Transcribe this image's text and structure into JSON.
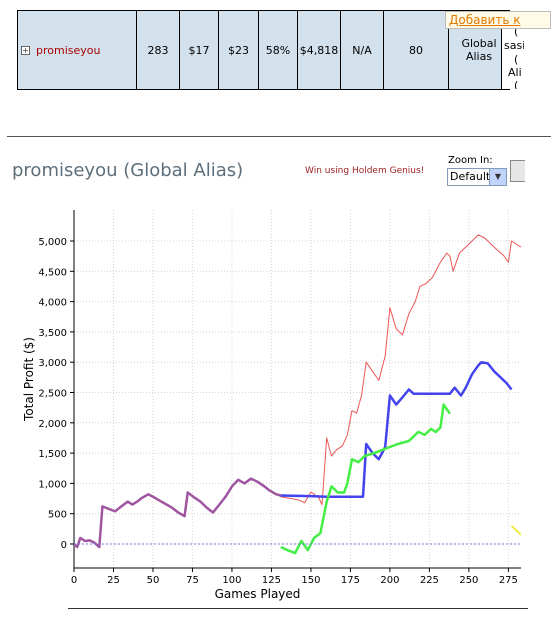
{
  "add_link": "Добавить к",
  "stats": {
    "expand_icon": "plus-box-icon",
    "player": "promiseyou",
    "games": "283",
    "avg_stake": "$17",
    "avg_profit": "$23",
    "roi": "58%",
    "total_profit": "$4,818",
    "na": "N/A",
    "col8": "80",
    "alias_label": "Global Alias"
  },
  "clip_text": [
    "(",
    "sasi",
    "(",
    "Ali",
    "("
  ],
  "chart_title": "promiseyou (Global Alias)",
  "promo": "Win using Holdem Genius!",
  "zoom": {
    "label": "Zoom In:",
    "value": "Default"
  },
  "chart_data": {
    "type": "line",
    "xlabel": "Games Played",
    "ylabel": "Total Profit ($)",
    "x_ticks": [
      0,
      25,
      50,
      75,
      100,
      125,
      150,
      175,
      200,
      225,
      250,
      275
    ],
    "y_ticks": [
      0,
      500,
      1000,
      1500,
      2000,
      2500,
      3000,
      3500,
      4000,
      4500,
      5000
    ],
    "y_tick_labels": [
      "0",
      "500",
      "1,000",
      "1,500",
      "2,000",
      "2,500",
      "3,000",
      "3,500",
      "4,000",
      "4,500",
      "5,000"
    ],
    "xlim": [
      0,
      283
    ],
    "ylim": [
      -400,
      5300
    ],
    "grid": true,
    "series": [
      {
        "color": "#ee5555",
        "width": 1,
        "points": [
          [
            0,
            0
          ],
          [
            2,
            -50
          ],
          [
            4,
            100
          ],
          [
            7,
            50
          ],
          [
            10,
            60
          ],
          [
            13,
            20
          ],
          [
            16,
            -50
          ],
          [
            18,
            620
          ],
          [
            22,
            580
          ],
          [
            26,
            540
          ],
          [
            30,
            620
          ],
          [
            34,
            700
          ],
          [
            37,
            650
          ],
          [
            40,
            700
          ],
          [
            43,
            760
          ],
          [
            47,
            820
          ],
          [
            50,
            780
          ],
          [
            54,
            720
          ],
          [
            58,
            660
          ],
          [
            62,
            600
          ],
          [
            66,
            520
          ],
          [
            70,
            460
          ],
          [
            72,
            850
          ],
          [
            76,
            770
          ],
          [
            80,
            700
          ],
          [
            84,
            600
          ],
          [
            88,
            520
          ],
          [
            92,
            650
          ],
          [
            96,
            780
          ],
          [
            100,
            950
          ],
          [
            104,
            1060
          ],
          [
            108,
            1000
          ],
          [
            112,
            1080
          ],
          [
            116,
            1030
          ],
          [
            120,
            960
          ],
          [
            124,
            880
          ],
          [
            128,
            820
          ],
          [
            131,
            780
          ],
          [
            135,
            760
          ],
          [
            140,
            740
          ],
          [
            143,
            720
          ],
          [
            146,
            680
          ],
          [
            150,
            860
          ],
          [
            152,
            820
          ],
          [
            155,
            760
          ],
          [
            157,
            650
          ],
          [
            160,
            1750
          ],
          [
            163,
            1450
          ],
          [
            166,
            1550
          ],
          [
            170,
            1620
          ],
          [
            173,
            1800
          ],
          [
            176,
            2200
          ],
          [
            179,
            2160
          ],
          [
            182,
            2450
          ],
          [
            185,
            3000
          ],
          [
            189,
            2850
          ],
          [
            193,
            2700
          ],
          [
            197,
            3100
          ],
          [
            200,
            3900
          ],
          [
            204,
            3550
          ],
          [
            208,
            3450
          ],
          [
            212,
            3800
          ],
          [
            216,
            4000
          ],
          [
            219,
            4250
          ],
          [
            223,
            4300
          ],
          [
            227,
            4400
          ],
          [
            232,
            4650
          ],
          [
            236,
            4800
          ],
          [
            238,
            4750
          ],
          [
            240,
            4500
          ],
          [
            244,
            4800
          ],
          [
            248,
            4900
          ],
          [
            252,
            5000
          ],
          [
            256,
            5100
          ],
          [
            260,
            5050
          ],
          [
            264,
            4950
          ],
          [
            268,
            4850
          ],
          [
            272,
            4760
          ],
          [
            275,
            4650
          ],
          [
            277,
            5000
          ],
          [
            283,
            4900
          ]
        ]
      },
      {
        "color": "#4444ee",
        "width": 2.5,
        "points": [
          [
            131,
            800
          ],
          [
            150,
            790
          ],
          [
            160,
            780
          ],
          [
            170,
            780
          ],
          [
            183,
            780
          ],
          [
            185,
            1650
          ],
          [
            189,
            1500
          ],
          [
            193,
            1400
          ],
          [
            197,
            1600
          ],
          [
            200,
            2450
          ],
          [
            204,
            2300
          ],
          [
            208,
            2420
          ],
          [
            212,
            2550
          ],
          [
            215,
            2480
          ],
          [
            220,
            2480
          ],
          [
            230,
            2480
          ],
          [
            238,
            2480
          ],
          [
            241,
            2580
          ],
          [
            245,
            2450
          ],
          [
            248,
            2580
          ],
          [
            252,
            2800
          ],
          [
            256,
            2950
          ],
          [
            258,
            3000
          ],
          [
            262,
            2980
          ],
          [
            266,
            2850
          ],
          [
            270,
            2750
          ],
          [
            274,
            2650
          ],
          [
            277,
            2550
          ]
        ]
      },
      {
        "color": "#44ee44",
        "width": 2.5,
        "points": [
          [
            131,
            -50
          ],
          [
            135,
            -100
          ],
          [
            140,
            -150
          ],
          [
            144,
            50
          ],
          [
            148,
            -100
          ],
          [
            152,
            100
          ],
          [
            156,
            180
          ],
          [
            160,
            700
          ],
          [
            163,
            950
          ],
          [
            167,
            850
          ],
          [
            171,
            850
          ],
          [
            173,
            1000
          ],
          [
            176,
            1400
          ],
          [
            180,
            1350
          ],
          [
            184,
            1450
          ],
          [
            190,
            1500
          ],
          [
            195,
            1550
          ],
          [
            200,
            1600
          ],
          [
            205,
            1650
          ],
          [
            212,
            1700
          ],
          [
            218,
            1850
          ],
          [
            222,
            1800
          ],
          [
            226,
            1900
          ],
          [
            229,
            1850
          ],
          [
            232,
            1920
          ],
          [
            234,
            2300
          ],
          [
            238,
            2150
          ]
        ]
      },
      {
        "color": "#a055a0",
        "width": 2.5,
        "points": [
          [
            0,
            0
          ],
          [
            2,
            -50
          ],
          [
            4,
            100
          ],
          [
            7,
            50
          ],
          [
            10,
            60
          ],
          [
            13,
            20
          ],
          [
            16,
            -50
          ],
          [
            18,
            620
          ],
          [
            22,
            580
          ],
          [
            26,
            540
          ],
          [
            30,
            620
          ],
          [
            34,
            700
          ],
          [
            37,
            650
          ],
          [
            40,
            700
          ],
          [
            43,
            760
          ],
          [
            47,
            820
          ],
          [
            50,
            780
          ],
          [
            54,
            720
          ],
          [
            58,
            660
          ],
          [
            62,
            600
          ],
          [
            66,
            520
          ],
          [
            70,
            460
          ],
          [
            72,
            850
          ],
          [
            76,
            770
          ],
          [
            80,
            700
          ],
          [
            84,
            600
          ],
          [
            88,
            520
          ],
          [
            92,
            650
          ],
          [
            96,
            780
          ],
          [
            100,
            950
          ],
          [
            104,
            1060
          ],
          [
            108,
            1000
          ],
          [
            112,
            1080
          ],
          [
            116,
            1030
          ],
          [
            120,
            960
          ],
          [
            124,
            880
          ],
          [
            128,
            820
          ],
          [
            131,
            800
          ]
        ]
      },
      {
        "color": "#eeee44",
        "width": 2,
        "points": [
          [
            277,
            300
          ],
          [
            283,
            150
          ]
        ]
      },
      {
        "color": "#7777ee",
        "width": 1,
        "dash": "2,2",
        "points": [
          [
            0,
            0
          ],
          [
            283,
            0
          ]
        ]
      }
    ]
  }
}
